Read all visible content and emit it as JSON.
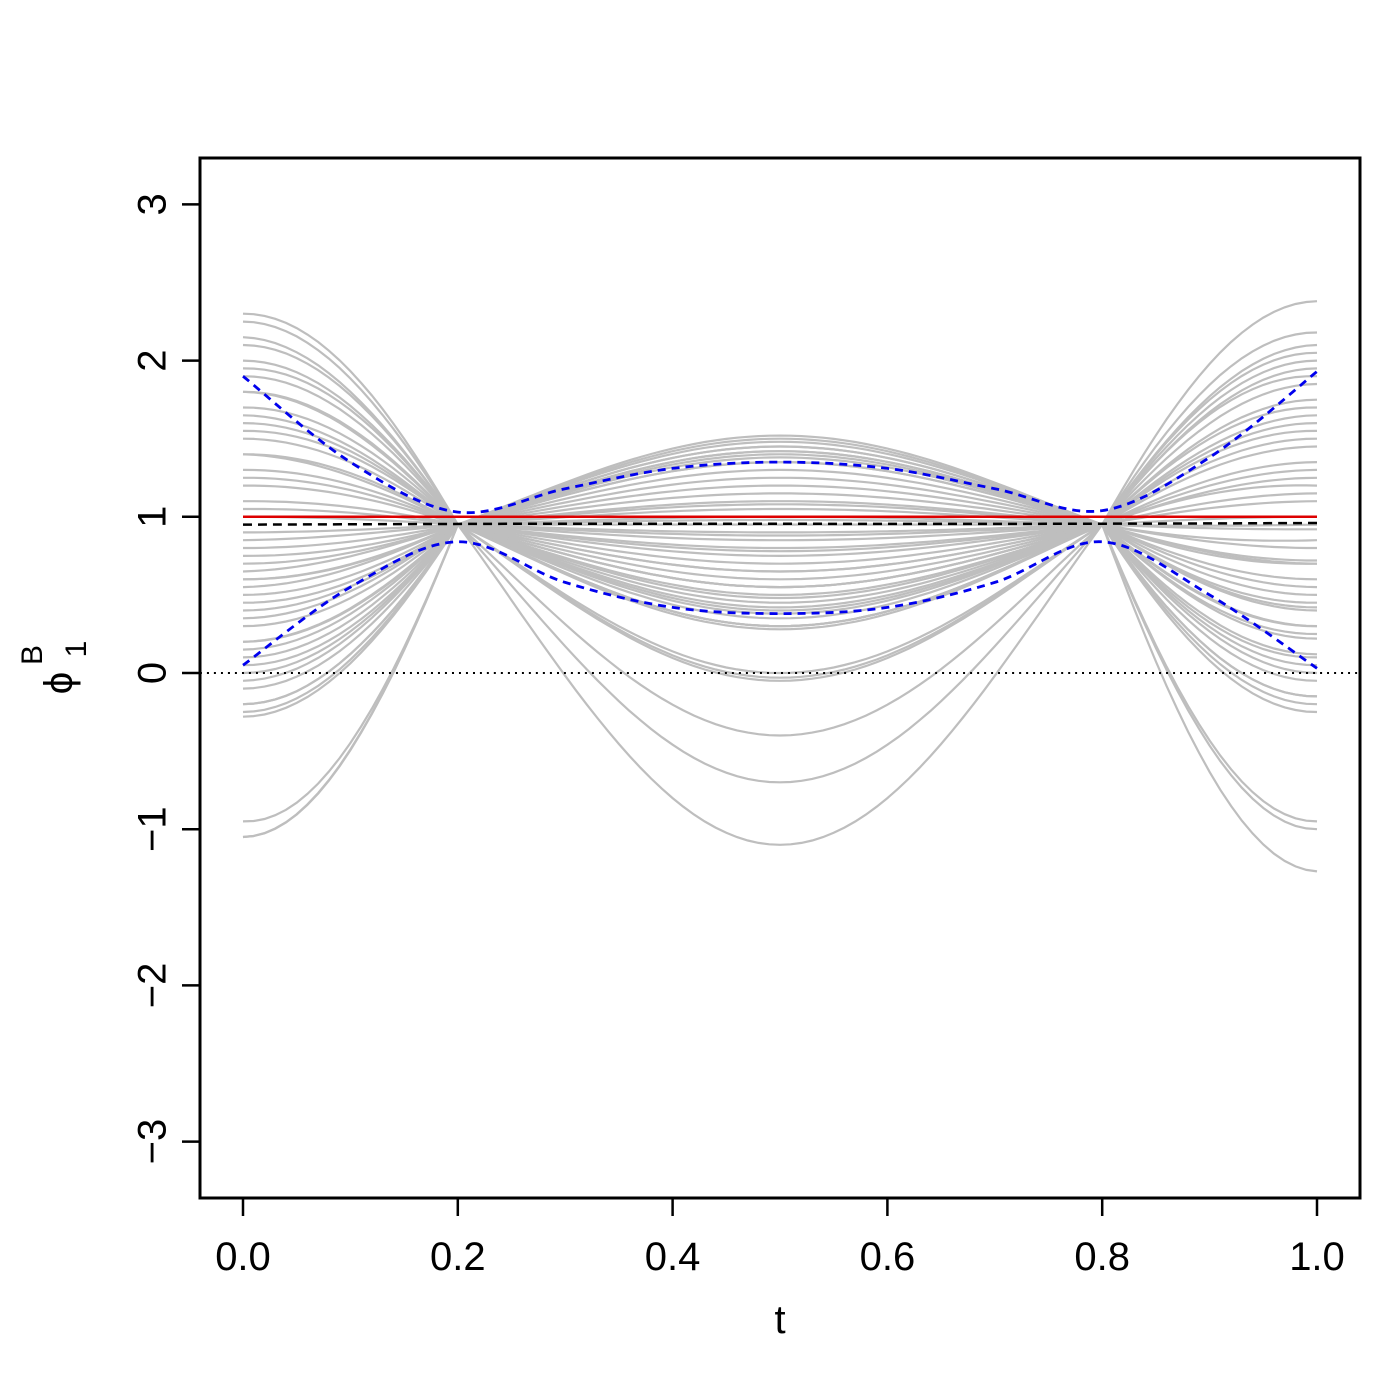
{
  "chart_data": {
    "type": "line",
    "title": "",
    "xlabel": "t",
    "ylabel": {
      "symbol": "ϕ",
      "superscript": "B",
      "subscript": "1"
    },
    "xlim": [
      0.0,
      1.0
    ],
    "ylim": [
      -3.3,
      3.3
    ],
    "x_ticks": [
      "0.0",
      "0.2",
      "0.4",
      "0.6",
      "0.8",
      "1.0"
    ],
    "y_ticks": [
      "−3",
      "−2",
      "−1",
      "0",
      "1",
      "2",
      "3"
    ],
    "grid": false,
    "legend": "none",
    "colors": {
      "bootstrap": "#bebebe",
      "truth": "#dd0000",
      "estimate": "#000000",
      "band": "#0000ee",
      "zero": "#000000"
    },
    "bootstrap_curves": {
      "description_model": "ends_value / middle_value pairs at t=0, 0.5, 1",
      "endpoints_and_middle": [
        [
          2.3,
          0.3,
          2.38
        ],
        [
          2.25,
          0.35,
          2.18
        ],
        [
          2.1,
          0.45,
          2.05
        ],
        [
          2.0,
          0.5,
          2.0
        ],
        [
          1.9,
          0.55,
          1.95
        ],
        [
          1.8,
          0.6,
          1.85
        ],
        [
          1.7,
          0.65,
          1.75
        ],
        [
          1.6,
          0.7,
          1.6
        ],
        [
          1.5,
          0.75,
          1.5
        ],
        [
          1.4,
          0.8,
          1.45
        ],
        [
          1.3,
          0.85,
          1.35
        ],
        [
          1.2,
          0.9,
          1.25
        ],
        [
          1.1,
          0.95,
          1.15
        ],
        [
          1.0,
          1.0,
          1.0
        ],
        [
          0.9,
          1.05,
          0.92
        ],
        [
          0.8,
          1.1,
          0.8
        ],
        [
          0.7,
          1.15,
          0.72
        ],
        [
          0.6,
          1.2,
          0.6
        ],
        [
          0.5,
          1.25,
          0.5
        ],
        [
          0.4,
          1.3,
          0.42
        ],
        [
          0.3,
          1.35,
          0.3
        ],
        [
          0.2,
          1.4,
          0.22
        ],
        [
          0.1,
          1.45,
          0.12
        ],
        [
          0.0,
          1.5,
          0.05
        ],
        [
          -0.1,
          1.48,
          -0.05
        ],
        [
          -0.2,
          1.52,
          -0.15
        ],
        [
          -0.28,
          1.45,
          -0.25
        ],
        [
          1.8,
          0.4,
          1.7
        ],
        [
          1.55,
          0.55,
          1.65
        ],
        [
          2.15,
          0.38,
          1.9
        ],
        [
          0.55,
          1.35,
          0.7
        ],
        [
          0.35,
          1.42,
          0.45
        ],
        [
          1.25,
          0.78,
          1.3
        ],
        [
          1.05,
          0.88,
          1.1
        ],
        [
          0.85,
          0.98,
          0.95
        ],
        [
          0.65,
          1.08,
          0.85
        ],
        [
          0.15,
          1.38,
          0.25
        ],
        [
          -0.05,
          1.42,
          0.1
        ],
        [
          1.65,
          0.48,
          1.55
        ],
        [
          1.95,
          0.42,
          2.1
        ],
        [
          0.45,
          0.3,
          0.4
        ],
        [
          0.2,
          0.28,
          0.3
        ],
        [
          1.4,
          0.3,
          1.2
        ],
        [
          -0.2,
          0.0,
          -0.15
        ],
        [
          -0.25,
          -0.03,
          -0.2
        ],
        [
          0.05,
          -0.05,
          0.0
        ],
        [
          -1.05,
          -0.4,
          -1.0
        ],
        [
          -1.05,
          -0.7,
          -0.95
        ],
        [
          -0.95,
          -1.1,
          -1.27
        ],
        [
          0.6,
          0.55,
          0.55
        ],
        [
          0.75,
          0.65,
          0.7
        ]
      ]
    },
    "series": [
      {
        "name": "",
        "role": "truth",
        "style": "solid",
        "x": [
          0.0,
          0.25,
          0.5,
          0.75,
          1.0
        ],
        "y": [
          1.0,
          1.0,
          1.0,
          1.0,
          1.0
        ]
      },
      {
        "name": "",
        "role": "estimate",
        "style": "dashed",
        "x": [
          0.0,
          0.25,
          0.5,
          0.75,
          1.0
        ],
        "y": [
          0.95,
          0.955,
          0.955,
          0.955,
          0.96
        ]
      },
      {
        "name": "",
        "role": "upper-band",
        "style": "dashed",
        "x": [
          0.0,
          0.1,
          0.2,
          0.3,
          0.4,
          0.5,
          0.6,
          0.7,
          0.8,
          0.9,
          1.0
        ],
        "y": [
          1.9,
          1.35,
          1.03,
          1.18,
          1.31,
          1.35,
          1.31,
          1.18,
          1.04,
          1.38,
          1.93
        ]
      },
      {
        "name": "",
        "role": "lower-band",
        "style": "dashed",
        "x": [
          0.0,
          0.1,
          0.2,
          0.3,
          0.4,
          0.5,
          0.6,
          0.7,
          0.8,
          0.9,
          1.0
        ],
        "y": [
          0.05,
          0.55,
          0.84,
          0.58,
          0.42,
          0.38,
          0.42,
          0.58,
          0.84,
          0.5,
          0.03
        ]
      },
      {
        "name": "",
        "role": "zero-line",
        "style": "dotted",
        "x": [
          0.0,
          1.0
        ],
        "y": [
          0.0,
          0.0
        ]
      }
    ]
  }
}
